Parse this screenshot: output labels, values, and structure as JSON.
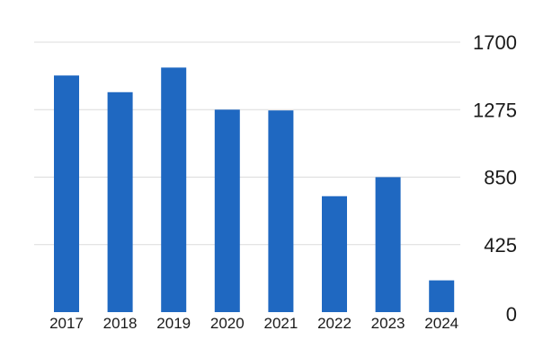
{
  "chart_data": {
    "type": "bar",
    "title": "",
    "xlabel": "",
    "ylabel": "",
    "categories": [
      "2017",
      "2018",
      "2019",
      "2020",
      "2021",
      "2022",
      "2023",
      "2024"
    ],
    "values": [
      1490,
      1385,
      1540,
      1275,
      1270,
      730,
      850,
      200
    ],
    "ylim": [
      0,
      1700
    ],
    "yticks": [
      0,
      425,
      850,
      1275,
      1700
    ],
    "ytick_labels": [
      "0",
      "425",
      "850",
      "1275",
      "1700"
    ],
    "y_axis_side": "right",
    "grid": true,
    "legend": "none",
    "colors": {
      "bar": "#1f68c1"
    }
  }
}
